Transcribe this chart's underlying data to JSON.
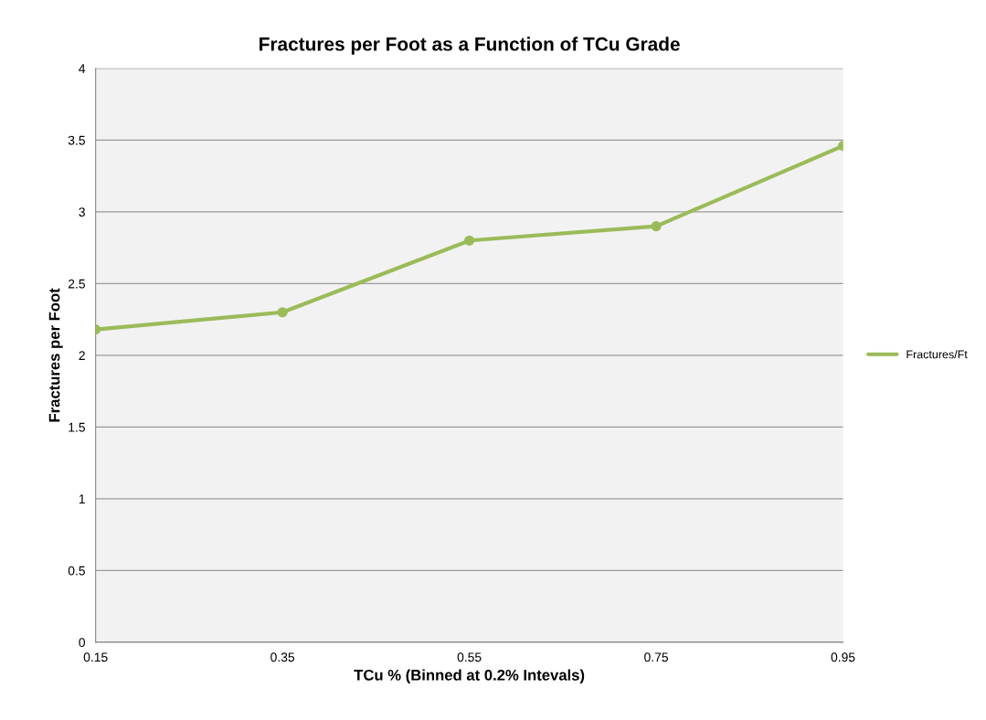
{
  "chart_data": {
    "type": "line",
    "title": "Fractures per Foot as a Function of TCu Grade",
    "xlabel": "TCu % (Binned at 0.2% Intevals)",
    "ylabel": "Fractures per Foot",
    "x": [
      0.15,
      0.35,
      0.55,
      0.75,
      0.95
    ],
    "series": [
      {
        "name": "Fractures/Ft",
        "color": "#9bbb59",
        "values": [
          2.18,
          2.3,
          2.8,
          2.9,
          3.46
        ]
      }
    ],
    "xlim": [
      0.15,
      0.95
    ],
    "xticks": [
      0.15,
      0.35,
      0.55,
      0.75,
      0.95
    ],
    "ylim": [
      0,
      4
    ],
    "yticks": [
      0,
      0.5,
      1,
      1.5,
      2,
      2.5,
      3,
      3.5,
      4
    ],
    "grid": "y",
    "legend": "right",
    "marker": "circle",
    "line_style": "solid"
  }
}
